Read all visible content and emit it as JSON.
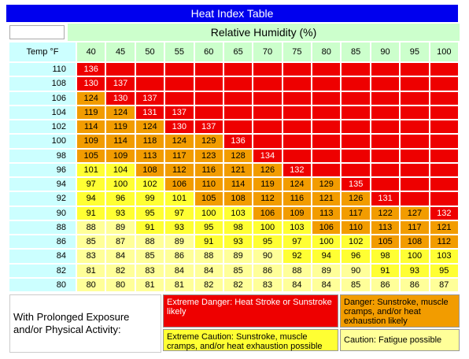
{
  "title": "Heat Index Table",
  "humidity_label": "Relative Humidity (%)",
  "temp_label": "Temp °F",
  "humidity": [
    40,
    45,
    50,
    55,
    60,
    65,
    70,
    75,
    80,
    85,
    90,
    95,
    100
  ],
  "rows": [
    {
      "temp": 110,
      "values": [
        136,
        null,
        null,
        null,
        null,
        null,
        null,
        null,
        null,
        null,
        null,
        null,
        null
      ]
    },
    {
      "temp": 108,
      "values": [
        130,
        137,
        null,
        null,
        null,
        null,
        null,
        null,
        null,
        null,
        null,
        null,
        null
      ]
    },
    {
      "temp": 106,
      "values": [
        124,
        130,
        137,
        null,
        null,
        null,
        null,
        null,
        null,
        null,
        null,
        null,
        null
      ]
    },
    {
      "temp": 104,
      "values": [
        119,
        124,
        131,
        137,
        null,
        null,
        null,
        null,
        null,
        null,
        null,
        null,
        null
      ]
    },
    {
      "temp": 102,
      "values": [
        114,
        119,
        124,
        130,
        137,
        null,
        null,
        null,
        null,
        null,
        null,
        null,
        null
      ]
    },
    {
      "temp": 100,
      "values": [
        109,
        114,
        118,
        124,
        129,
        136,
        null,
        null,
        null,
        null,
        null,
        null,
        null
      ]
    },
    {
      "temp": 98,
      "values": [
        105,
        109,
        113,
        117,
        123,
        128,
        134,
        null,
        null,
        null,
        null,
        null,
        null
      ]
    },
    {
      "temp": 96,
      "values": [
        101,
        104,
        108,
        112,
        116,
        121,
        126,
        132,
        null,
        null,
        null,
        null,
        null
      ]
    },
    {
      "temp": 94,
      "values": [
        97,
        100,
        102,
        106,
        110,
        114,
        119,
        124,
        129,
        135,
        null,
        null,
        null
      ]
    },
    {
      "temp": 92,
      "values": [
        94,
        96,
        99,
        101,
        105,
        108,
        112,
        116,
        121,
        126,
        131,
        null,
        null
      ]
    },
    {
      "temp": 90,
      "values": [
        91,
        93,
        95,
        97,
        100,
        103,
        106,
        109,
        113,
        117,
        122,
        127,
        132
      ]
    },
    {
      "temp": 88,
      "values": [
        88,
        89,
        91,
        93,
        95,
        98,
        100,
        103,
        106,
        110,
        113,
        117,
        121
      ]
    },
    {
      "temp": 86,
      "values": [
        85,
        87,
        88,
        89,
        91,
        93,
        95,
        97,
        100,
        102,
        105,
        108,
        112
      ]
    },
    {
      "temp": 84,
      "values": [
        83,
        84,
        85,
        86,
        88,
        89,
        90,
        92,
        94,
        96,
        98,
        100,
        103
      ]
    },
    {
      "temp": 82,
      "values": [
        81,
        82,
        83,
        84,
        84,
        85,
        86,
        88,
        89,
        90,
        91,
        93,
        95
      ]
    },
    {
      "temp": 80,
      "values": [
        80,
        80,
        81,
        81,
        82,
        82,
        83,
        84,
        84,
        85,
        86,
        86,
        87
      ]
    }
  ],
  "legend": {
    "note": "With Prolonged Exposure and/or Physical Activity:",
    "levels": [
      {
        "text": "Extreme Danger: Heat Stroke or Sunstroke likely",
        "color": "#ee0000"
      },
      {
        "text": "Danger: Sunstroke, muscle cramps, and/or heat exhaustion likely",
        "color": "#f29c00"
      },
      {
        "text": "Extreme Caution: Sunstroke, muscle cramps, and/or heat exhaustion possible",
        "color": "#ffff33"
      },
      {
        "text": "Caution: Fatigue possible",
        "color": "#ffff99"
      }
    ]
  }
}
